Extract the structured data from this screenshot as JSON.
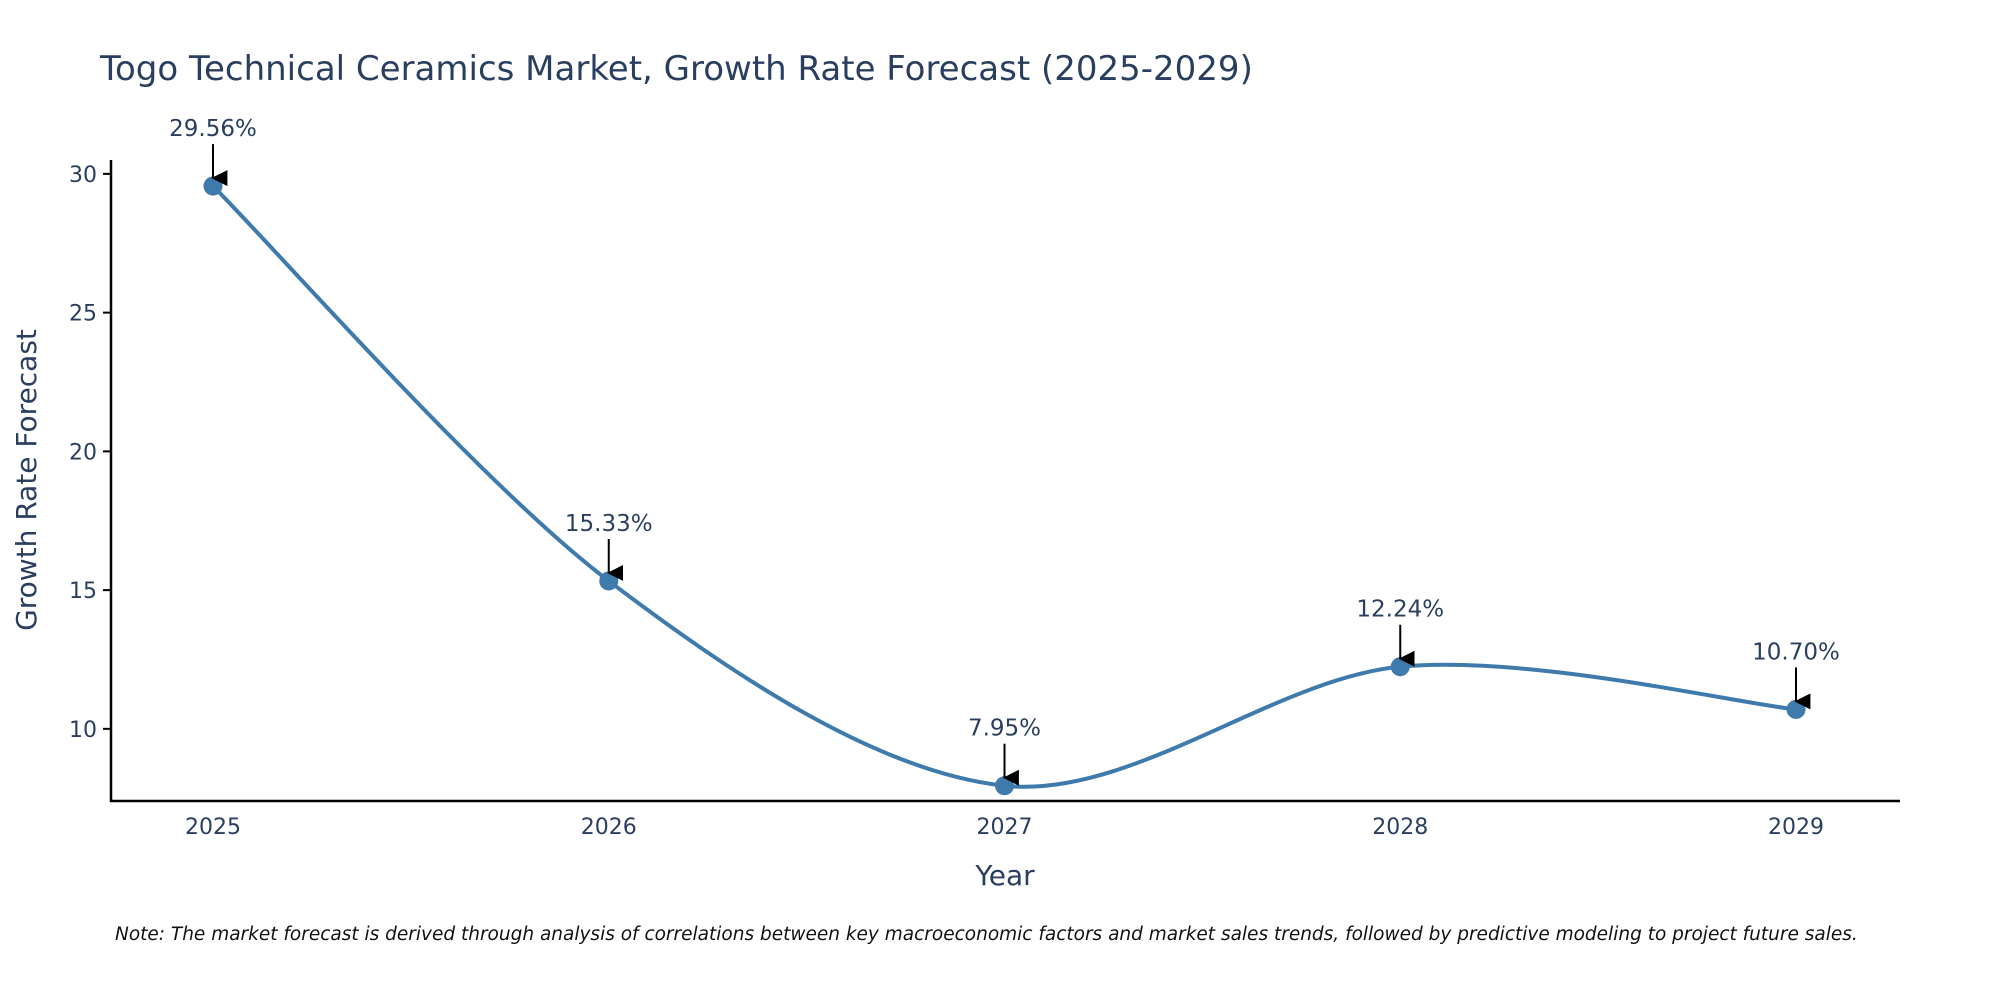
{
  "colors": {
    "line": "#3e7aab",
    "marker": "#3e7aab",
    "axis": "#000000",
    "text": "#2a3f5f",
    "arrow": "#000000"
  },
  "chart_data": {
    "type": "line",
    "title": "Togo Technical Ceramics Market, Growth Rate Forecast (2025-2029)",
    "xlabel": "Year",
    "ylabel": "Growth Rate Forecast",
    "categories": [
      "2025",
      "2026",
      "2027",
      "2028",
      "2029"
    ],
    "values": [
      29.56,
      15.33,
      7.95,
      12.24,
      10.7
    ],
    "data_labels": [
      "29.56%",
      "15.33%",
      "7.95%",
      "12.24%",
      "10.70%"
    ],
    "yticks": [
      10,
      15,
      20,
      25,
      30
    ],
    "ylim": [
      7.4,
      30.5
    ],
    "grid": false,
    "line_shape": "spline"
  },
  "note": "Note: The market forecast is derived through analysis of correlations between key macroeconomic factors and market sales trends, followed by predictive modeling to project future sales."
}
